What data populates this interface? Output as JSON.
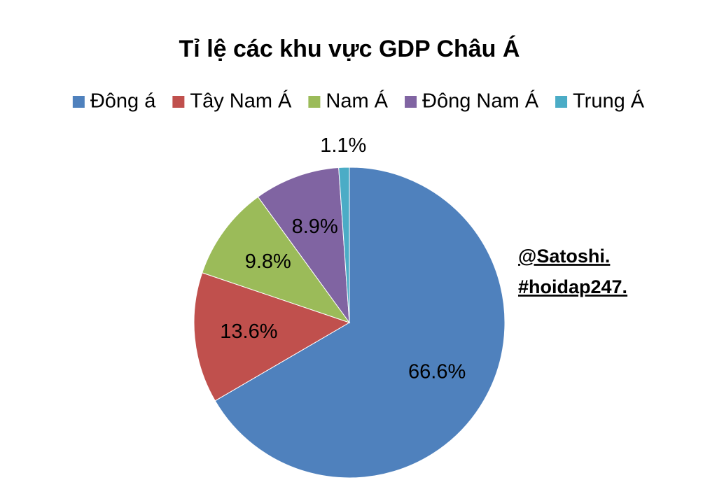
{
  "chart_data": {
    "type": "pie",
    "title": "Tỉ lệ các khu vực GDP Châu Á",
    "categories": [
      "Đông á",
      "Tây Nam Á",
      "Nam Á",
      "Đông Nam Á",
      "Trung Á"
    ],
    "values": [
      66.6,
      13.6,
      9.8,
      8.9,
      1.1
    ],
    "value_labels": [
      "66.6%",
      "13.6%",
      "9.8%",
      "8.9%",
      "1.1%"
    ],
    "colors": [
      "#4f81bd",
      "#c0504d",
      "#9bbb59",
      "#8064a2",
      "#4bacc6"
    ],
    "legend": "top",
    "annotations": [
      "@Satoshi.",
      "#hoidap247."
    ]
  }
}
